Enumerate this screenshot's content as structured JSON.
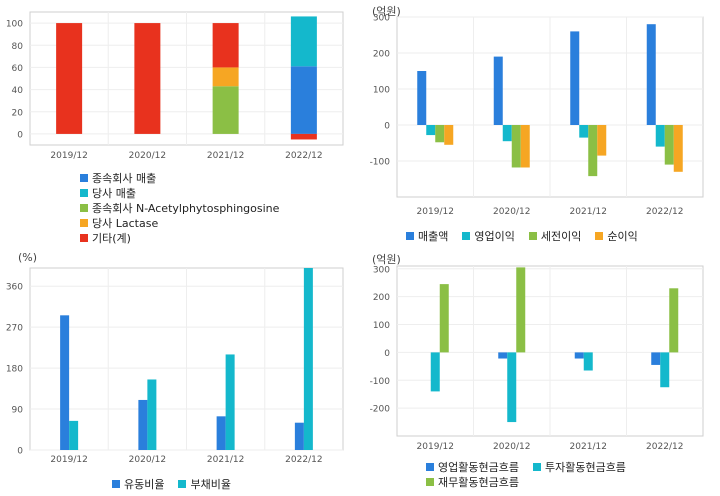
{
  "colors": {
    "blue": "#2a7fdc",
    "cyan": "#14b8cc",
    "green": "#8bbf45",
    "orange": "#f6a623",
    "red": "#e8321e"
  },
  "chart_data": [
    {
      "type": "bar",
      "stacked": true,
      "categories": [
        "2019/12",
        "2020/12",
        "2021/12",
        "2022/12"
      ],
      "ylim": [
        -10,
        110
      ],
      "yticks": [
        0,
        20,
        40,
        60,
        80,
        100
      ],
      "unit": "",
      "series": [
        {
          "name": "종속회사 매출",
          "color": "#2a7fdc",
          "values": [
            0,
            0,
            0,
            61
          ]
        },
        {
          "name": "당사 매출",
          "color": "#14b8cc",
          "values": [
            0,
            0,
            0,
            45
          ]
        },
        {
          "name": "종속회사 N-Acetylphytosphingosine",
          "color": "#8bbf45",
          "values": [
            0,
            0,
            43,
            0
          ]
        },
        {
          "name": "당사 Lactase",
          "color": "#f6a623",
          "values": [
            0,
            0,
            17,
            0
          ]
        },
        {
          "name": "기타(계)",
          "color": "#e8321e",
          "values": [
            100,
            100,
            40,
            -5
          ]
        }
      ],
      "legend": "bottom"
    },
    {
      "type": "bar",
      "categories": [
        "2019/12",
        "2020/12",
        "2021/12",
        "2022/12"
      ],
      "ylim": [
        -200,
        300
      ],
      "yticks": [
        -100,
        0,
        100,
        200,
        300
      ],
      "unit": "(억원)",
      "series": [
        {
          "name": "매출액",
          "color": "#2a7fdc",
          "values": [
            150,
            190,
            260,
            280
          ]
        },
        {
          "name": "영업이익",
          "color": "#14b8cc",
          "values": [
            -28,
            -45,
            -35,
            -60
          ]
        },
        {
          "name": "세전이익",
          "color": "#8bbf45",
          "values": [
            -48,
            -118,
            -142,
            -110
          ]
        },
        {
          "name": "순이익",
          "color": "#f6a623",
          "values": [
            -55,
            -118,
            -85,
            -130
          ]
        }
      ],
      "legend": "bottom"
    },
    {
      "type": "bar",
      "categories": [
        "2019/12",
        "2020/12",
        "2021/12",
        "2022/12"
      ],
      "ylim": [
        0,
        400
      ],
      "yticks": [
        0,
        90,
        180,
        270,
        360
      ],
      "unit": "(%)",
      "series": [
        {
          "name": "유동비율",
          "color": "#2a7fdc",
          "values": [
            296,
            110,
            74,
            60
          ]
        },
        {
          "name": "부채비율",
          "color": "#14b8cc",
          "values": [
            64,
            155,
            210,
            400
          ]
        }
      ],
      "legend": "bottom"
    },
    {
      "type": "bar",
      "categories": [
        "2019/12",
        "2020/12",
        "2021/12",
        "2022/12"
      ],
      "ylim": [
        -300,
        310
      ],
      "yticks": [
        -200,
        -100,
        0,
        100,
        200,
        300
      ],
      "unit": "(억원)",
      "series": [
        {
          "name": "영업활동현금흐름",
          "color": "#2a7fdc",
          "values": [
            0,
            -22,
            -22,
            -45
          ]
        },
        {
          "name": "투자활동현금흐름",
          "color": "#14b8cc",
          "values": [
            -140,
            -250,
            -65,
            -125
          ]
        },
        {
          "name": "재무활동현금흐름",
          "color": "#8bbf45",
          "values": [
            245,
            305,
            0,
            230
          ]
        }
      ],
      "legend": "bottom"
    }
  ]
}
